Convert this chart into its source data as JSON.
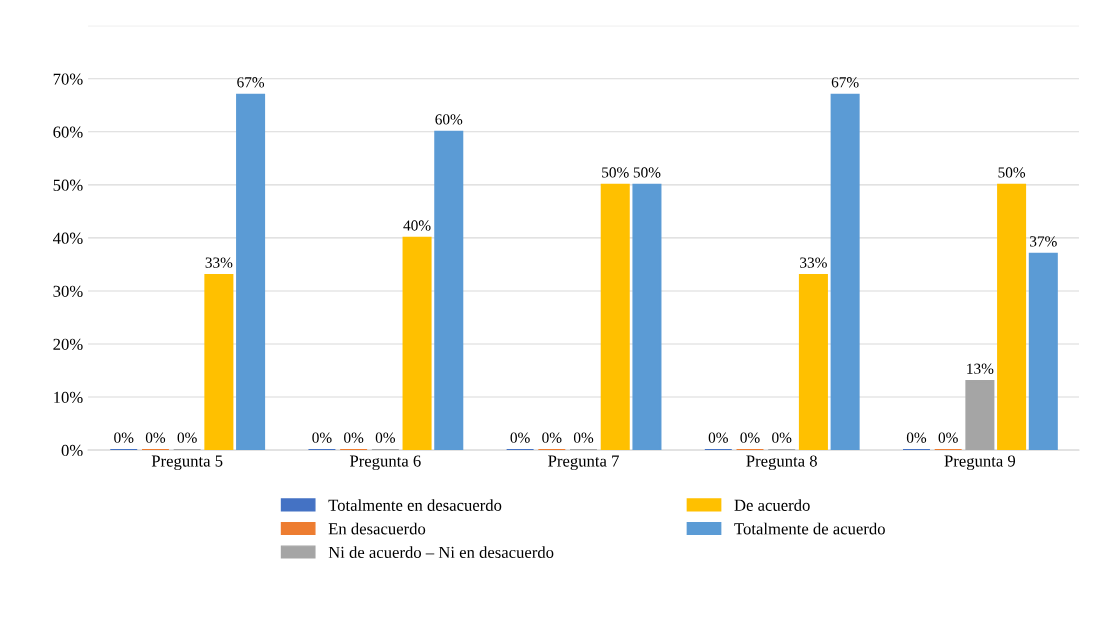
{
  "chart_data": {
    "type": "bar",
    "categories": [
      "Pregunta 5",
      "Pregunta 6",
      "Pregunta 7",
      "Pregunta 8",
      "Pregunta 9"
    ],
    "series": [
      {
        "name": "Totalmente en desacuerdo",
        "color": "#4472c4",
        "values": [
          0,
          0,
          0,
          0,
          0
        ],
        "value_labels": [
          "0%",
          "0%",
          "0%",
          "0%",
          "0%"
        ]
      },
      {
        "name": "En desacuerdo",
        "color": "#ed7d31",
        "values": [
          0,
          0,
          0,
          0,
          0
        ],
        "value_labels": [
          "0%",
          "0%",
          "0%",
          "0%",
          "0%"
        ]
      },
      {
        "name": "Ni de acuerdo – Ni en desacuerdo",
        "color": "#a5a5a5",
        "values": [
          0,
          0,
          0,
          0,
          13
        ],
        "value_labels": [
          "0%",
          "0%",
          "0%",
          "0%",
          "13%"
        ]
      },
      {
        "name": "De acuerdo",
        "color": "#ffc000",
        "values": [
          33,
          40,
          50,
          33,
          50
        ],
        "value_labels": [
          "33%",
          "40%",
          "50%",
          "33%",
          "50%"
        ]
      },
      {
        "name": "Totalmente de acuerdo",
        "color": "#5b9bd5",
        "values": [
          67,
          60,
          50,
          67,
          37
        ],
        "value_labels": [
          "67%",
          "60%",
          "50%",
          "67%",
          "37%"
        ]
      }
    ],
    "ylim": [
      0,
      80
    ],
    "yticks": [
      {
        "value": 0,
        "label": "0%"
      },
      {
        "value": 10,
        "label": "10%"
      },
      {
        "value": 20,
        "label": "20%"
      },
      {
        "value": 30,
        "label": "30%"
      },
      {
        "value": 40,
        "label": "40%"
      },
      {
        "value": 50,
        "label": "50%"
      },
      {
        "value": 60,
        "label": "60%"
      },
      {
        "value": 70,
        "label": "70%"
      },
      {
        "value": 80,
        "label": null
      }
    ],
    "grid": "y",
    "legend": "bottom"
  }
}
